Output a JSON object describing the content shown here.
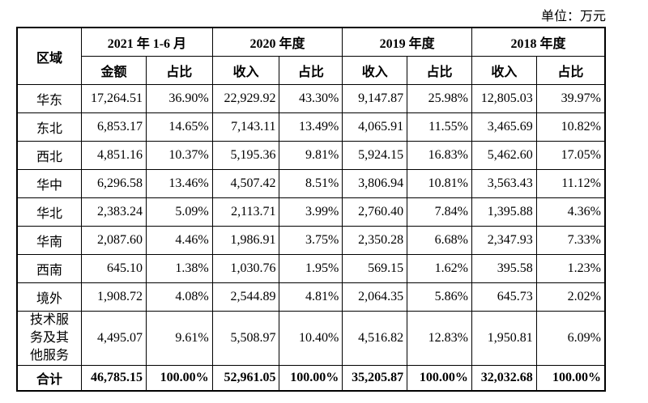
{
  "unit": "单位：万元",
  "header": {
    "region": "区域",
    "periods": [
      "2021 年 1-6 月",
      "2020 年度",
      "2019 年度",
      "2018 年度"
    ],
    "sub": [
      [
        "金额",
        "占比"
      ],
      [
        "收入",
        "占比"
      ],
      [
        "收入",
        "占比"
      ],
      [
        "收入",
        "占比"
      ]
    ]
  },
  "table": {
    "rows": [
      [
        "华东",
        "17,264.51",
        "36.90%",
        "22,929.92",
        "43.30%",
        "9,147.87",
        "25.98%",
        "12,805.03",
        "39.97%"
      ],
      [
        "东北",
        "6,853.17",
        "14.65%",
        "7,143.11",
        "13.49%",
        "4,065.91",
        "11.55%",
        "3,465.69",
        "10.82%"
      ],
      [
        "西北",
        "4,851.16",
        "10.37%",
        "5,195.36",
        "9.81%",
        "5,924.15",
        "16.83%",
        "5,462.60",
        "17.05%"
      ],
      [
        "华中",
        "6,296.58",
        "13.46%",
        "4,507.42",
        "8.51%",
        "3,806.94",
        "10.81%",
        "3,563.43",
        "11.12%"
      ],
      [
        "华北",
        "2,383.24",
        "5.09%",
        "2,113.71",
        "3.99%",
        "2,760.40",
        "7.84%",
        "1,395.88",
        "4.36%"
      ],
      [
        "华南",
        "2,087.60",
        "4.46%",
        "1,986.91",
        "3.75%",
        "2,350.28",
        "6.68%",
        "2,347.93",
        "7.33%"
      ],
      [
        "西南",
        "645.10",
        "1.38%",
        "1,030.76",
        "1.95%",
        "569.15",
        "1.62%",
        "395.58",
        "1.23%"
      ],
      [
        "境外",
        "1,908.72",
        "4.08%",
        "2,544.89",
        "4.81%",
        "2,064.35",
        "5.86%",
        "645.73",
        "2.02%"
      ],
      [
        "技术服务及其他服务",
        "4,495.07",
        "9.61%",
        "5,508.97",
        "10.40%",
        "4,516.82",
        "12.83%",
        "1,950.81",
        "6.09%"
      ]
    ],
    "total": [
      "合计",
      "46,785.15",
      "100.00%",
      "52,961.05",
      "100.00%",
      "35,205.87",
      "100.00%",
      "32,032.68",
      "100.00%"
    ]
  }
}
